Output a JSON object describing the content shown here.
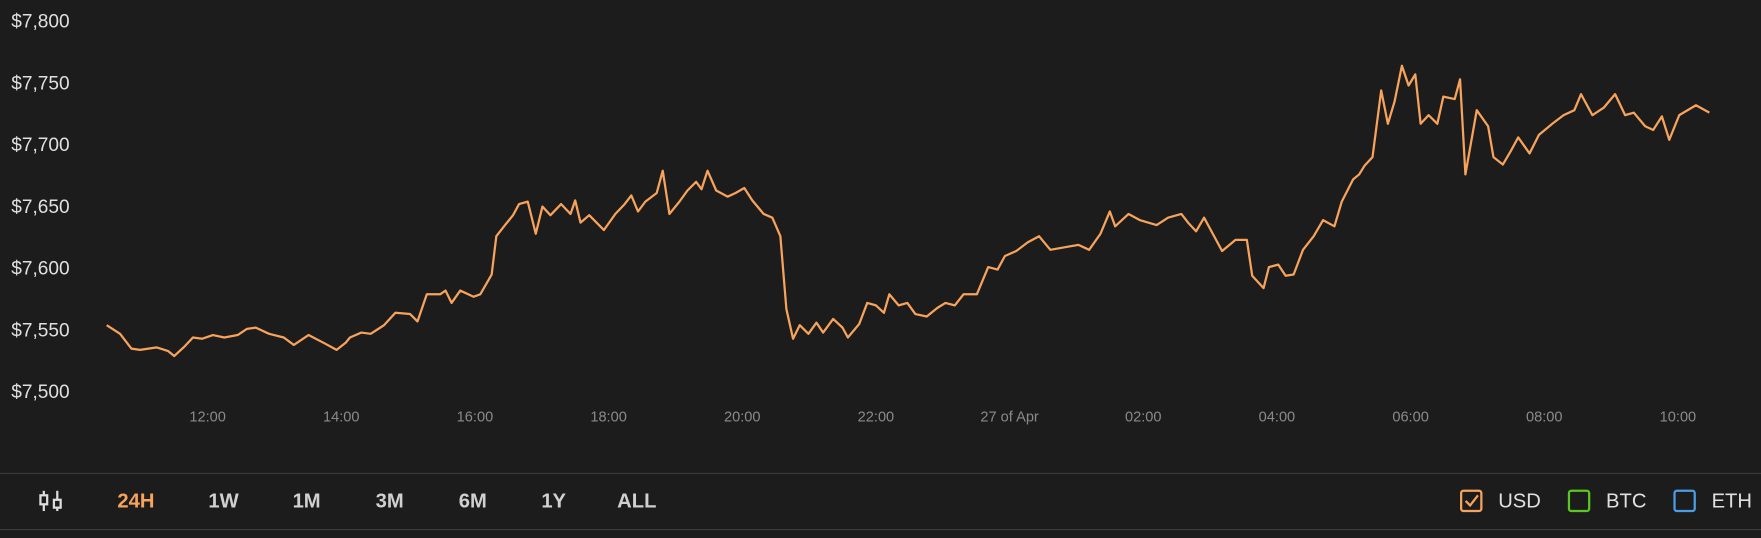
{
  "chart_data": {
    "type": "line",
    "x": [
      10.49,
      10.69,
      10.86,
      10.99,
      11.24,
      11.41,
      11.5,
      11.66,
      11.78,
      11.92,
      12.08,
      12.25,
      12.45,
      12.59,
      12.72,
      12.92,
      13.14,
      13.29,
      13.51,
      13.76,
      13.93,
      14.07,
      14.13,
      14.3,
      14.44,
      14.64,
      14.81,
      15.03,
      15.14,
      15.28,
      15.48,
      15.56,
      15.65,
      15.78,
      15.98,
      16.08,
      16.25,
      16.32,
      16.45,
      16.57,
      16.66,
      16.79,
      16.91,
      17.01,
      17.13,
      17.29,
      17.43,
      17.5,
      17.58,
      17.71,
      17.93,
      18.1,
      18.24,
      18.34,
      18.44,
      18.55,
      18.72,
      18.81,
      18.91,
      19.06,
      19.18,
      19.31,
      19.39,
      19.48,
      19.61,
      19.78,
      19.9,
      20.03,
      20.15,
      20.32,
      20.45,
      20.57,
      20.66,
      20.76,
      20.86,
      20.99,
      21.11,
      21.21,
      21.36,
      21.5,
      21.58,
      21.75,
      21.87,
      22.0,
      22.12,
      22.2,
      22.34,
      22.47,
      22.59,
      22.76,
      22.92,
      23.04,
      23.18,
      23.31,
      23.51,
      23.68,
      23.82,
      23.93,
      24.1,
      24.27,
      24.44,
      24.61,
      24.82,
      25.03,
      25.19,
      25.36,
      25.5,
      25.58,
      25.78,
      25.95,
      26.2,
      26.37,
      26.57,
      26.67,
      26.79,
      26.91,
      27.04,
      27.18,
      27.38,
      27.55,
      27.63,
      27.8,
      27.88,
      28.02,
      28.13,
      28.25,
      28.39,
      28.55,
      28.69,
      28.86,
      28.97,
      29.14,
      29.23,
      29.31,
      29.43,
      29.56,
      29.66,
      29.76,
      29.87,
      29.97,
      30.07,
      30.15,
      30.27,
      30.4,
      30.49,
      30.66,
      30.74,
      30.82,
      30.99,
      31.16,
      31.24,
      31.38,
      31.5,
      31.61,
      31.78,
      31.92,
      32.12,
      32.29,
      32.45,
      32.55,
      32.72,
      32.89,
      33.06,
      33.21,
      33.34,
      33.51,
      33.63,
      33.76,
      33.87,
      34.02,
      34.27,
      34.47
    ],
    "series": [
      {
        "name": "USD",
        "color": "#f7a35c",
        "values": [
          7555,
          7548,
          7536,
          7535,
          7537,
          7534,
          7530,
          7538,
          7545,
          7544,
          7547,
          7545,
          7547,
          7552,
          7553,
          7548,
          7545,
          7539,
          7547,
          7540,
          7535,
          7541,
          7545,
          7549,
          7548,
          7555,
          7565,
          7564,
          7558,
          7580,
          7580,
          7583,
          7573,
          7583,
          7578,
          7580,
          7596,
          7627,
          7636,
          7644,
          7653,
          7655,
          7629,
          7651,
          7644,
          7653,
          7645,
          7656,
          7638,
          7644,
          7632,
          7645,
          7653,
          7660,
          7647,
          7655,
          7662,
          7680,
          7645,
          7655,
          7664,
          7671,
          7665,
          7680,
          7664,
          7659,
          7662,
          7666,
          7656,
          7645,
          7642,
          7627,
          7568,
          7544,
          7555,
          7548,
          7557,
          7549,
          7560,
          7553,
          7545,
          7556,
          7573,
          7571,
          7565,
          7580,
          7571,
          7573,
          7564,
          7562,
          7569,
          7573,
          7571,
          7580,
          7580,
          7602,
          7600,
          7611,
          7615,
          7622,
          7627,
          7616,
          7618,
          7620,
          7616,
          7629,
          7647,
          7635,
          7645,
          7640,
          7636,
          7642,
          7645,
          7638,
          7631,
          7642,
          7629,
          7615,
          7624,
          7624,
          7595,
          7585,
          7602,
          7604,
          7595,
          7596,
          7616,
          7627,
          7640,
          7635,
          7655,
          7673,
          7677,
          7684,
          7691,
          7745,
          7718,
          7736,
          7765,
          7749,
          7758,
          7718,
          7725,
          7718,
          7740,
          7738,
          7754,
          7677,
          7729,
          7716,
          7691,
          7685,
          7696,
          7707,
          7694,
          7709,
          7718,
          7725,
          7729,
          7742,
          7725,
          7731,
          7742,
          7725,
          7727,
          7716,
          7713,
          7724,
          7705,
          7725,
          7733,
          7727
        ]
      }
    ],
    "toggles": [
      {
        "name": "BTC",
        "color": "#5ac81e"
      },
      {
        "name": "ETH",
        "color": "#4a9ee8"
      }
    ],
    "xlim": [
      10.49,
      34.47
    ],
    "xticks": [
      {
        "value": 12,
        "label": "12:00"
      },
      {
        "value": 14,
        "label": "14:00"
      },
      {
        "value": 16,
        "label": "16:00"
      },
      {
        "value": 18,
        "label": "18:00"
      },
      {
        "value": 20,
        "label": "20:00"
      },
      {
        "value": 22,
        "label": "22:00"
      },
      {
        "value": 24,
        "label": "27 of Apr"
      },
      {
        "value": 26,
        "label": "02:00"
      },
      {
        "value": 28,
        "label": "04:00"
      },
      {
        "value": 30,
        "label": "06:00"
      },
      {
        "value": 32,
        "label": "08:00"
      },
      {
        "value": 34,
        "label": "10:00"
      }
    ],
    "ylim": [
      7500,
      7800
    ],
    "yticks": [
      {
        "value": 7500,
        "label": "$7,500"
      },
      {
        "value": 7550,
        "label": "$7,550"
      },
      {
        "value": 7600,
        "label": "$7,600"
      },
      {
        "value": 7650,
        "label": "$7,650"
      },
      {
        "value": 7700,
        "label": "$7,700"
      },
      {
        "value": 7750,
        "label": "$7,750"
      },
      {
        "value": 7800,
        "label": "$7,800"
      }
    ],
    "grid": false
  },
  "controls": {
    "ranges": [
      "24H",
      "1W",
      "1M",
      "3M",
      "6M",
      "1Y",
      "ALL"
    ],
    "active": 0,
    "active_color": "#f7a35c"
  }
}
